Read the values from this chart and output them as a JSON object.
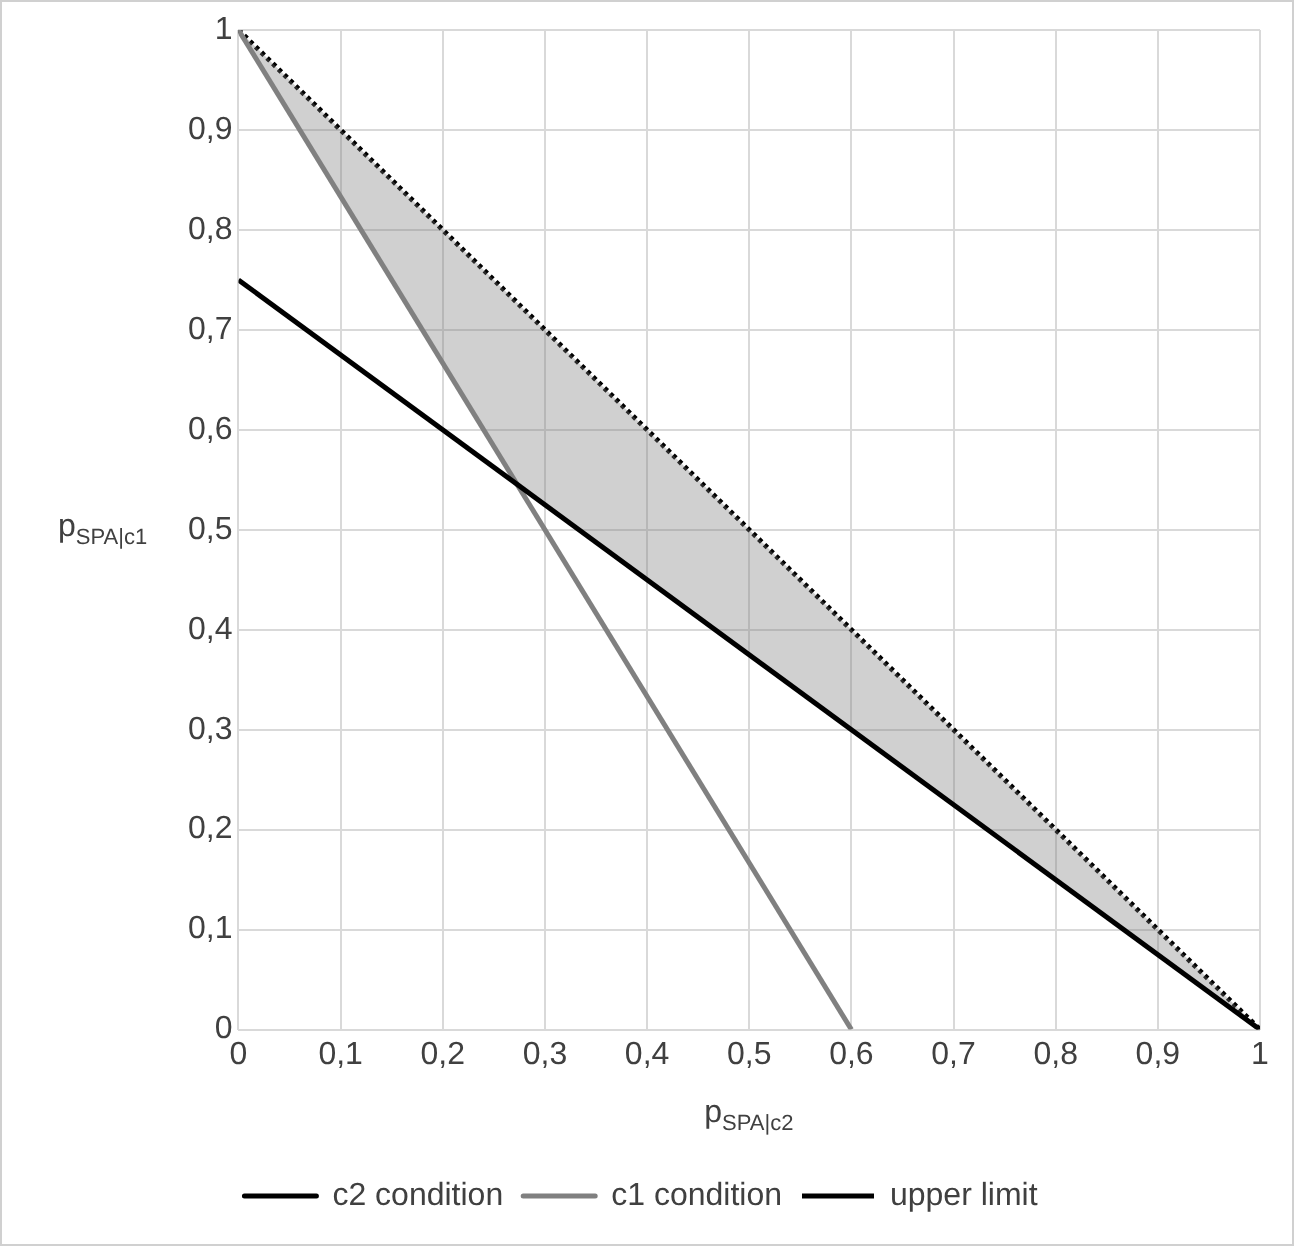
{
  "chart_data": {
    "type": "line",
    "xlabel": "p$_{SPA|c2}$",
    "ylabel": "p$_{SPA|c1}$",
    "series": [
      {
        "name": "c2 condition",
        "color": "#000000",
        "x": [
          0,
          1
        ],
        "values": [
          0.75,
          0
        ]
      },
      {
        "name": "c1 condition",
        "color": "#808080",
        "x": [
          0,
          0.6
        ],
        "values": [
          1,
          0
        ]
      },
      {
        "name": "upper limit",
        "color": "#000000",
        "line_style": "dotted",
        "x": [
          0,
          0.27,
          1
        ],
        "values": [
          1,
          0.73,
          0
        ],
        "lower": [
          1,
          0.55,
          0
        ],
        "upper": [
          1,
          0.73,
          0
        ]
      }
    ],
    "xlim": [
      0,
      1
    ],
    "ylim": [
      0,
      1
    ],
    "xticks": [
      0,
      {
        "value": 0.1,
        "label": "0,1"
      },
      {
        "value": 0.2,
        "label": "0,2"
      },
      {
        "value": 0.3,
        "label": "0,3"
      },
      {
        "value": 0.4,
        "label": "0,4"
      },
      {
        "value": 0.5,
        "label": "0,5"
      },
      {
        "value": 0.6,
        "label": "0,6"
      },
      {
        "value": 0.7,
        "label": "0,7"
      },
      {
        "value": 0.8,
        "label": "0,8"
      },
      {
        "value": 0.9,
        "label": "0,9"
      },
      1
    ],
    "yticks": [
      0,
      {
        "value": 0.1,
        "label": "0,1"
      },
      {
        "value": 0.2,
        "label": "0,2"
      },
      {
        "value": 0.3,
        "label": "0,3"
      },
      {
        "value": 0.4,
        "label": "0,4"
      },
      {
        "value": 0.5,
        "label": "0,5"
      },
      {
        "value": 0.6,
        "label": "0,6"
      },
      {
        "value": 0.7,
        "label": "0,7"
      },
      {
        "value": 0.8,
        "label": "0,8"
      },
      {
        "value": 0.9,
        "label": "0,9"
      },
      1
    ],
    "grid": true,
    "legend": "bottom",
    "marker": "none"
  }
}
